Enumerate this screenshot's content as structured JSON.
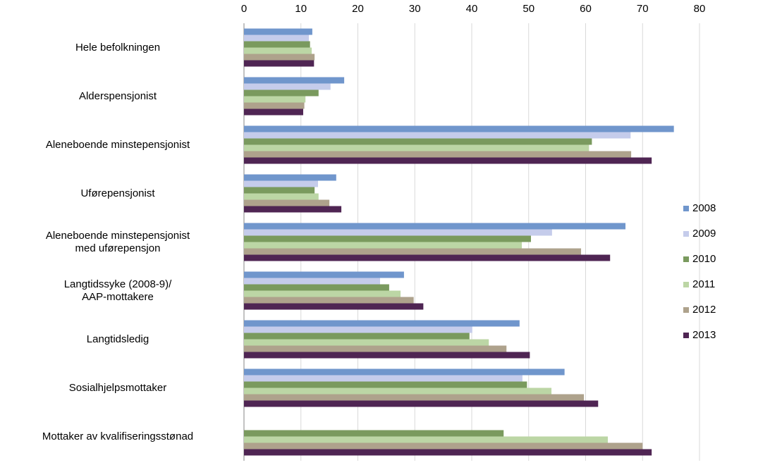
{
  "chart_data": {
    "type": "bar",
    "orientation": "horizontal",
    "categories": [
      "Hele befolkningen",
      "Alderspensjonist",
      "Aleneboende minstepensjonist ",
      "Uførepensjonist",
      "Aleneboende minstepensjonist\nmed uførepensjon",
      "Langtidssyke (2008-9)/\nAAP-mottakere",
      "Langtidsledig",
      "Sosialhjelpsmottaker",
      "Mottaker av kvalifiseringsstønad"
    ],
    "series": [
      {
        "name": "2008",
        "color": "#7096cc",
        "values": [
          12.0,
          17.6,
          75.5,
          16.2,
          67.0,
          28.1,
          48.4,
          56.3,
          null
        ]
      },
      {
        "name": "2009",
        "color": "#c5cceb",
        "values": [
          11.4,
          15.2,
          67.9,
          13.0,
          54.1,
          23.9,
          40.1,
          48.9,
          null
        ]
      },
      {
        "name": "2010",
        "color": "#7a9a5e",
        "values": [
          11.6,
          13.1,
          61.1,
          12.4,
          50.4,
          25.5,
          39.6,
          49.7,
          45.6
        ]
      },
      {
        "name": "2011",
        "color": "#bcd6a5",
        "values": [
          11.9,
          10.8,
          60.6,
          13.1,
          48.8,
          27.5,
          43.0,
          54.0,
          63.9
        ]
      },
      {
        "name": "2012",
        "color": "#aea28c",
        "values": [
          12.4,
          10.6,
          68.0,
          15.0,
          59.2,
          29.8,
          46.1,
          59.7,
          70.0
        ]
      },
      {
        "name": "2013",
        "color": "#4f2553",
        "values": [
          12.3,
          10.4,
          71.6,
          17.1,
          64.3,
          31.5,
          50.2,
          62.2,
          71.6
        ]
      }
    ],
    "xlim": [
      0,
      80
    ],
    "xticks": [
      0,
      10,
      20,
      30,
      40,
      50,
      60,
      70,
      80
    ],
    "grid": true,
    "legend": "right"
  }
}
